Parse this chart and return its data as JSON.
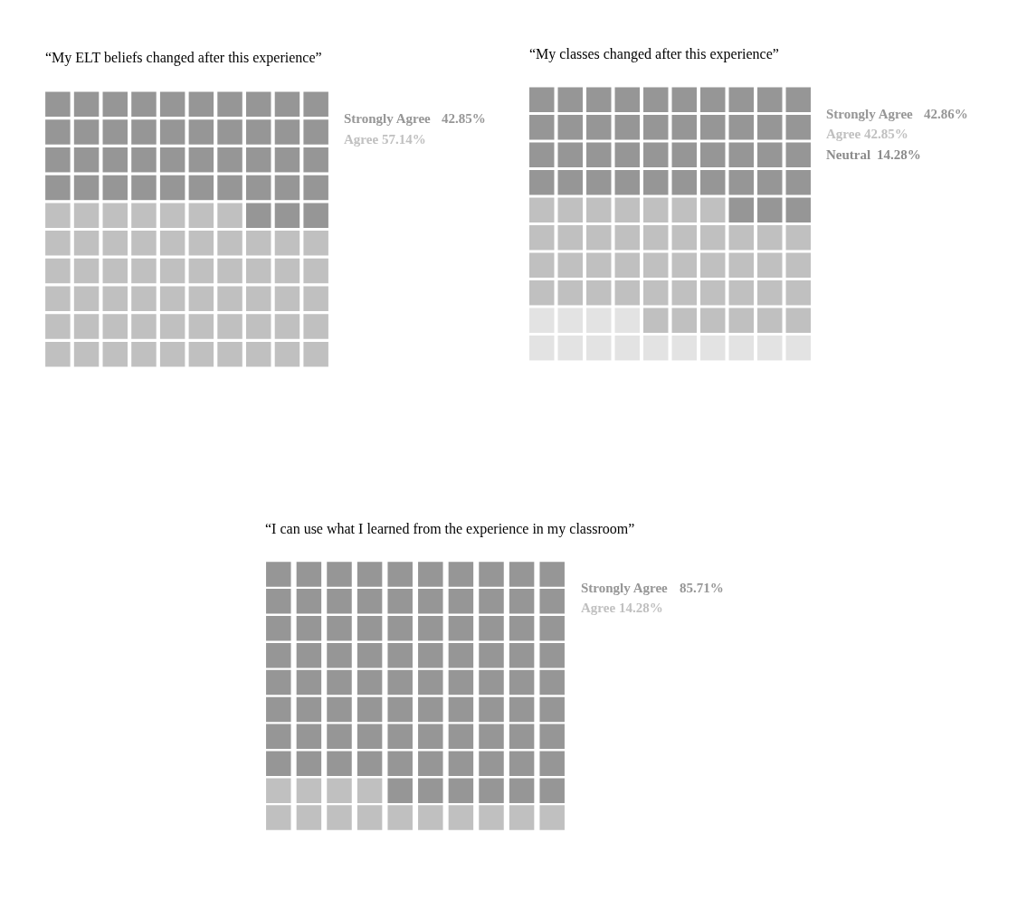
{
  "chart_data": [
    {
      "type": "other",
      "title": "“My ELT beliefs changed after this experience”",
      "categories": [
        "Strongly Agree",
        "Agree"
      ],
      "values": [
        42.85,
        57.14
      ],
      "value_labels": [
        "42.85%",
        "57.14%"
      ],
      "colors": [
        "#969696",
        "#c0c0c0"
      ]
    },
    {
      "type": "other",
      "title": "“My classes changed after this experience”",
      "categories": [
        "Strongly Agree",
        "Agree",
        "Neutral"
      ],
      "values": [
        42.86,
        42.85,
        14.28
      ],
      "value_labels": [
        "42.86%",
        "42.85%",
        "14.28%"
      ],
      "colors": [
        "#969696",
        "#c0c0c0",
        "#e3e3e3"
      ]
    },
    {
      "type": "other",
      "title": "“I can use what I learned from the experience in my classroom”",
      "categories": [
        "Strongly Agree",
        "Agree"
      ],
      "values": [
        85.71,
        14.28
      ],
      "value_labels": [
        "85.71%",
        "14.28%"
      ],
      "colors": [
        "#969696",
        "#c0c0c0"
      ]
    }
  ]
}
